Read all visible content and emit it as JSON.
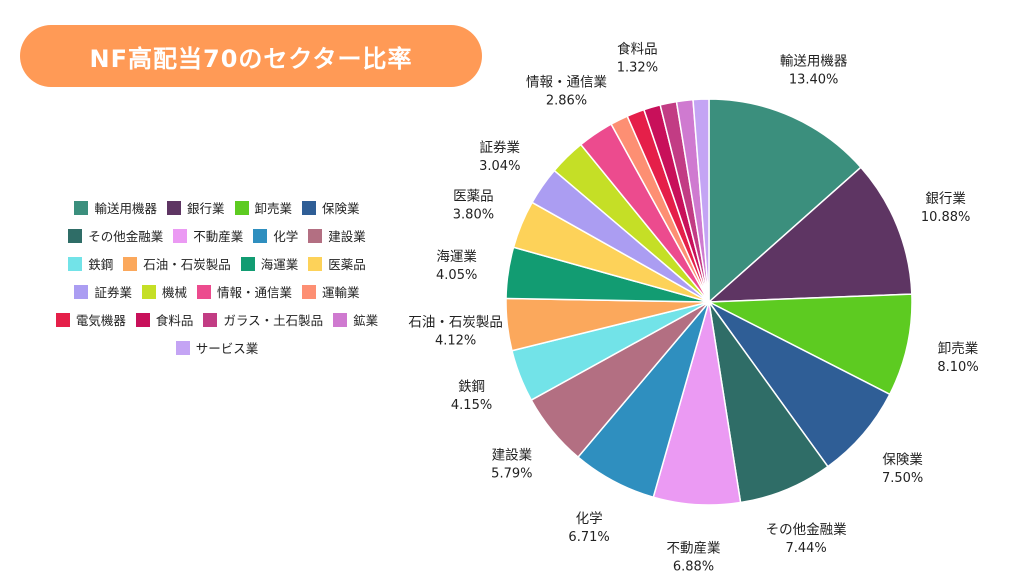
{
  "title": "NF高配当70のセクター比率",
  "chart_data": {
    "type": "pie",
    "title": "NF高配当70のセクター比率",
    "legend_placement": "left",
    "slices": [
      {
        "label": "輸送用機器",
        "value": 13.4,
        "value_label": "13.40%",
        "color": "#3b8f7d"
      },
      {
        "label": "銀行業",
        "value": 10.88,
        "value_label": "10.88%",
        "color": "#5e3563"
      },
      {
        "label": "卸売業",
        "value": 8.1,
        "value_label": "8.10%",
        "color": "#5dcb21"
      },
      {
        "label": "保険業",
        "value": 7.5,
        "value_label": "7.50%",
        "color": "#2f5e96"
      },
      {
        "label": "その他金融業",
        "value": 7.44,
        "value_label": "7.44%",
        "color": "#2f6d67"
      },
      {
        "label": "不動産業",
        "value": 6.88,
        "value_label": "6.88%",
        "color": "#eb9af3"
      },
      {
        "label": "化学",
        "value": 6.71,
        "value_label": "6.71%",
        "color": "#2f8fbf"
      },
      {
        "label": "建設業",
        "value": 5.79,
        "value_label": "5.79%",
        "color": "#b36f82"
      },
      {
        "label": "鉄鋼",
        "value": 4.15,
        "value_label": "4.15%",
        "color": "#72e3e8"
      },
      {
        "label": "石油・石炭製品",
        "value": 4.12,
        "value_label": "4.12%",
        "color": "#fba85c"
      },
      {
        "label": "海運業",
        "value": 4.05,
        "value_label": "4.05%",
        "color": "#129c72"
      },
      {
        "label": "医薬品",
        "value": 3.8,
        "value_label": "3.80%",
        "color": "#fdd259"
      },
      {
        "label": "証券業",
        "value": 3.04,
        "value_label": "3.04%",
        "color": "#ab9df2"
      },
      {
        "label": "機械",
        "value": 2.9,
        "value_label": "",
        "color": "#c5df26"
      },
      {
        "label": "情報・通信業",
        "value": 2.86,
        "value_label": "2.86%",
        "color": "#ec4b8e"
      },
      {
        "label": "運輸業",
        "value": 1.4,
        "value_label": "",
        "color": "#fd8f73"
      },
      {
        "label": "電気機器",
        "value": 1.4,
        "value_label": "",
        "color": "#e51f49"
      },
      {
        "label": "食料品",
        "value": 1.32,
        "value_label": "1.32%",
        "color": "#c8105a"
      },
      {
        "label": "ガラス・土石製品",
        "value": 1.3,
        "value_label": "",
        "color": "#c23c84"
      },
      {
        "label": "鉱業",
        "value": 1.3,
        "value_label": "",
        "color": "#cf7ad0"
      },
      {
        "label": "サービス業",
        "value": 1.25,
        "value_label": "",
        "color": "#c4a4f4"
      }
    ]
  }
}
